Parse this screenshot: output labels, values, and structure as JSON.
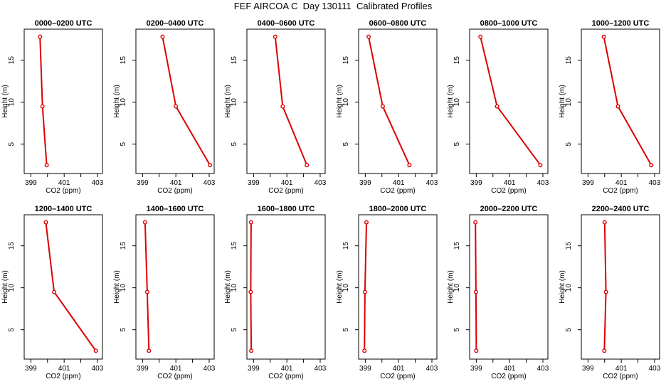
{
  "title": "FEF AIRCOA C  Day 130111  Calibrated Profiles",
  "colors": {
    "series": "#dd0000",
    "axis": "#000000"
  },
  "chart_data": [
    {
      "type": "line",
      "title": "0000–0200 UTC",
      "xlabel": "CO2 (ppm)",
      "ylabel": "Height (m)",
      "xlim": [
        398.6,
        403.3
      ],
      "ylim": [
        1.5,
        18.7
      ],
      "xticks": [
        399,
        400,
        401,
        402,
        403
      ],
      "xtick_labels": [
        "399",
        "",
        "401",
        "",
        "403"
      ],
      "yticks": [
        5,
        10,
        15
      ],
      "ytick_labels": [
        "5",
        "10",
        "15"
      ],
      "x": [
        399.55,
        399.7,
        399.95
      ],
      "y": [
        17.8,
        9.5,
        2.5
      ]
    },
    {
      "type": "line",
      "title": "0200–0400 UTC",
      "xlabel": "CO2 (ppm)",
      "ylabel": "Height (m)",
      "xlim": [
        398.6,
        403.3
      ],
      "ylim": [
        1.5,
        18.7
      ],
      "xticks": [
        399,
        400,
        401,
        402,
        403
      ],
      "xtick_labels": [
        "399",
        "",
        "401",
        "",
        "403"
      ],
      "yticks": [
        5,
        10,
        15
      ],
      "ytick_labels": [
        "5",
        "10",
        "15"
      ],
      "x": [
        400.2,
        401.0,
        403.05
      ],
      "y": [
        17.8,
        9.5,
        2.5
      ]
    },
    {
      "type": "line",
      "title": "0400–0600 UTC",
      "xlabel": "CO2 (ppm)",
      "ylabel": "Height (m)",
      "xlim": [
        398.6,
        403.3
      ],
      "ylim": [
        1.5,
        18.7
      ],
      "xticks": [
        399,
        400,
        401,
        402,
        403
      ],
      "xtick_labels": [
        "399",
        "",
        "401",
        "",
        "403"
      ],
      "yticks": [
        5,
        10,
        15
      ],
      "ytick_labels": [
        "5",
        "10",
        "15"
      ],
      "x": [
        400.3,
        400.75,
        402.2
      ],
      "y": [
        17.8,
        9.5,
        2.5
      ]
    },
    {
      "type": "line",
      "title": "0600–0800 UTC",
      "xlabel": "CO2 (ppm)",
      "ylabel": "Height (m)",
      "xlim": [
        398.6,
        403.3
      ],
      "ylim": [
        1.5,
        18.7
      ],
      "xticks": [
        399,
        400,
        401,
        402,
        403
      ],
      "xtick_labels": [
        "399",
        "",
        "401",
        "",
        "403"
      ],
      "yticks": [
        5,
        10,
        15
      ],
      "ytick_labels": [
        "5",
        "10",
        "15"
      ],
      "x": [
        399.2,
        400.05,
        401.65
      ],
      "y": [
        17.8,
        9.5,
        2.5
      ]
    },
    {
      "type": "line",
      "title": "0800–1000 UTC",
      "xlabel": "CO2 (ppm)",
      "ylabel": "Height (m)",
      "xlim": [
        398.6,
        403.3
      ],
      "ylim": [
        1.5,
        18.7
      ],
      "xticks": [
        399,
        400,
        401,
        402,
        403
      ],
      "xtick_labels": [
        "399",
        "",
        "401",
        "",
        "403"
      ],
      "yticks": [
        5,
        10,
        15
      ],
      "ytick_labels": [
        "5",
        "10",
        "15"
      ],
      "x": [
        399.25,
        400.25,
        402.85
      ],
      "y": [
        17.8,
        9.5,
        2.5
      ]
    },
    {
      "type": "line",
      "title": "1000–1200 UTC",
      "xlabel": "CO2 (ppm)",
      "ylabel": "Height (m)",
      "xlim": [
        398.6,
        403.3
      ],
      "ylim": [
        1.5,
        18.7
      ],
      "xticks": [
        399,
        400,
        401,
        402,
        403
      ],
      "xtick_labels": [
        "399",
        "",
        "401",
        "",
        "403"
      ],
      "yticks": [
        5,
        10,
        15
      ],
      "ytick_labels": [
        "5",
        "10",
        "15"
      ],
      "x": [
        399.95,
        400.8,
        402.8
      ],
      "y": [
        17.8,
        9.5,
        2.5
      ]
    },
    {
      "type": "line",
      "title": "1200–1400 UTC",
      "xlabel": "CO2 (ppm)",
      "ylabel": "Height (m)",
      "xlim": [
        398.6,
        403.3
      ],
      "ylim": [
        1.5,
        18.7
      ],
      "xticks": [
        399,
        400,
        401,
        402,
        403
      ],
      "xtick_labels": [
        "399",
        "",
        "401",
        "",
        "403"
      ],
      "yticks": [
        5,
        10,
        15
      ],
      "ytick_labels": [
        "5",
        "10",
        "15"
      ],
      "x": [
        399.9,
        400.4,
        402.9
      ],
      "y": [
        17.8,
        9.5,
        2.5
      ]
    },
    {
      "type": "line",
      "title": "1400–1600 UTC",
      "xlabel": "CO2 (ppm)",
      "ylabel": "Height (m)",
      "xlim": [
        398.6,
        403.3
      ],
      "ylim": [
        1.5,
        18.7
      ],
      "xticks": [
        399,
        400,
        401,
        402,
        403
      ],
      "xtick_labels": [
        "399",
        "",
        "401",
        "",
        "403"
      ],
      "yticks": [
        5,
        10,
        15
      ],
      "ytick_labels": [
        "5",
        "10",
        "15"
      ],
      "x": [
        399.15,
        399.28,
        399.38
      ],
      "y": [
        17.8,
        9.5,
        2.5
      ]
    },
    {
      "type": "line",
      "title": "1600–1800 UTC",
      "xlabel": "CO2 (ppm)",
      "ylabel": "Height (m)",
      "xlim": [
        398.6,
        403.3
      ],
      "ylim": [
        1.5,
        18.7
      ],
      "xticks": [
        399,
        400,
        401,
        402,
        403
      ],
      "xtick_labels": [
        "399",
        "",
        "401",
        "",
        "403"
      ],
      "yticks": [
        5,
        10,
        15
      ],
      "ytick_labels": [
        "5",
        "10",
        "15"
      ],
      "x": [
        398.85,
        398.83,
        398.86
      ],
      "y": [
        17.8,
        9.5,
        2.5
      ]
    },
    {
      "type": "line",
      "title": "1800–2000 UTC",
      "xlabel": "CO2 (ppm)",
      "ylabel": "Height (m)",
      "xlim": [
        398.6,
        403.3
      ],
      "ylim": [
        1.5,
        18.7
      ],
      "xticks": [
        399,
        400,
        401,
        402,
        403
      ],
      "xtick_labels": [
        "399",
        "",
        "401",
        "",
        "403"
      ],
      "yticks": [
        5,
        10,
        15
      ],
      "ytick_labels": [
        "5",
        "10",
        "15"
      ],
      "x": [
        399.07,
        398.98,
        398.95
      ],
      "y": [
        17.8,
        9.5,
        2.5
      ]
    },
    {
      "type": "line",
      "title": "2000–2200 UTC",
      "xlabel": "CO2 (ppm)",
      "ylabel": "Height (m)",
      "xlim": [
        398.6,
        403.3
      ],
      "ylim": [
        1.5,
        18.7
      ],
      "xticks": [
        399,
        400,
        401,
        402,
        403
      ],
      "xtick_labels": [
        "399",
        "",
        "401",
        "",
        "403"
      ],
      "yticks": [
        5,
        10,
        15
      ],
      "ytick_labels": [
        "5",
        "10",
        "15"
      ],
      "x": [
        398.95,
        398.98,
        399.0
      ],
      "y": [
        17.8,
        9.5,
        2.5
      ]
    },
    {
      "type": "line",
      "title": "2200–2400 UTC",
      "xlabel": "CO2 (ppm)",
      "ylabel": "Height (m)",
      "xlim": [
        398.6,
        403.3
      ],
      "ylim": [
        1.5,
        18.7
      ],
      "xticks": [
        399,
        400,
        401,
        402,
        403
      ],
      "xtick_labels": [
        "399",
        "",
        "401",
        "",
        "403"
      ],
      "yticks": [
        5,
        10,
        15
      ],
      "ytick_labels": [
        "5",
        "10",
        "15"
      ],
      "x": [
        400.0,
        400.08,
        399.98
      ],
      "y": [
        17.8,
        9.5,
        2.5
      ]
    }
  ]
}
